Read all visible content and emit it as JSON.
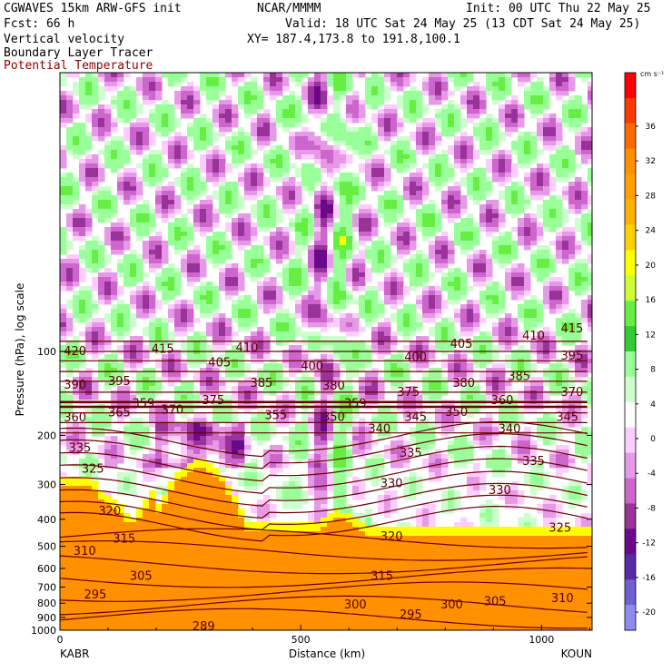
{
  "header": {
    "model": "CGWAVES 15km ARW-GFS init",
    "org": "NCAR/MMMM",
    "init": "Init: 00 UTC Thu 22 May 25",
    "fcst": "Fcst:   66 h",
    "valid": "Valid: 18 UTC Sat 24 May 25 (13 CDT Sat 24 May 25)",
    "field1": "Vertical velocity",
    "xy": "XY= 187.4,173.8 to 191.8,100.1",
    "field2": "Boundary Layer Tracer",
    "field3": "Potential Temperature",
    "field3_color": "#8b0000"
  },
  "chart_data": {
    "type": "heatmap",
    "xlabel": "Distance (km)",
    "ylabel": "Pressure (hPa), log scale",
    "xlim": [
      0,
      1105
    ],
    "ylim": [
      1000,
      10
    ],
    "x_ticks": [
      0,
      500,
      1000
    ],
    "y_ticks": [
      100,
      200,
      300,
      400,
      500,
      600,
      700,
      800,
      900,
      1000
    ],
    "start_label": "KABR",
    "end_label": "KOUN",
    "colorbar": {
      "unit": "cm s⁻¹",
      "levels": [
        36,
        32,
        28,
        24,
        20,
        16,
        12,
        8,
        4,
        0,
        -4,
        -8,
        -12,
        -16,
        -20
      ],
      "colors": [
        "#ff0000",
        "#ff3a00",
        "#ff6a00",
        "#ff9000",
        "#ff9f00",
        "#ffb000",
        "#ffd000",
        "#ffff00",
        "#ccff33",
        "#66ee44",
        "#33cc33",
        "#99ff99",
        "#ccffcc",
        "#ffffff",
        "#ffccff",
        "#e699e6",
        "#cc66cc",
        "#993399",
        "#6a0a8a",
        "#5a2aa8",
        "#6f5fd0",
        "#8c8cf0"
      ]
    },
    "theta_labels": [
      {
        "v": "420",
        "x": 8,
        "p": 100
      },
      {
        "v": "415",
        "x": 190,
        "p": 98
      },
      {
        "v": "410",
        "x": 365,
        "p": 97
      },
      {
        "v": "405",
        "x": 810,
        "p": 94
      },
      {
        "v": "410",
        "x": 960,
        "p": 88
      },
      {
        "v": "415",
        "x": 1040,
        "p": 83
      },
      {
        "v": "405",
        "x": 308,
        "p": 110
      },
      {
        "v": "400",
        "x": 500,
        "p": 113
      },
      {
        "v": "400",
        "x": 715,
        "p": 105
      },
      {
        "v": "395",
        "x": 1040,
        "p": 104
      },
      {
        "v": "390",
        "x": 8,
        "p": 132
      },
      {
        "v": "395",
        "x": 100,
        "p": 128
      },
      {
        "v": "385",
        "x": 395,
        "p": 130
      },
      {
        "v": "380",
        "x": 545,
        "p": 133
      },
      {
        "v": "380",
        "x": 815,
        "p": 130
      },
      {
        "v": "385",
        "x": 930,
        "p": 123
      },
      {
        "v": "375",
        "x": 700,
        "p": 140
      },
      {
        "v": "370",
        "x": 1040,
        "p": 140
      },
      {
        "v": "359",
        "x": 150,
        "p": 154
      },
      {
        "v": "375",
        "x": 295,
        "p": 150
      },
      {
        "v": "370",
        "x": 210,
        "p": 162
      },
      {
        "v": "365",
        "x": 100,
        "p": 166
      },
      {
        "v": "360",
        "x": 8,
        "p": 173
      },
      {
        "v": "355",
        "x": 425,
        "p": 170
      },
      {
        "v": "350",
        "x": 545,
        "p": 172
      },
      {
        "v": "345",
        "x": 715,
        "p": 172
      },
      {
        "v": "350",
        "x": 800,
        "p": 165
      },
      {
        "v": "345",
        "x": 1030,
        "p": 172
      },
      {
        "v": "359",
        "x": 590,
        "p": 154
      },
      {
        "v": "360",
        "x": 895,
        "p": 150
      },
      {
        "v": "340",
        "x": 640,
        "p": 190
      },
      {
        "v": "340",
        "x": 910,
        "p": 190
      },
      {
        "v": "335",
        "x": 18,
        "p": 222
      },
      {
        "v": "335",
        "x": 705,
        "p": 232
      },
      {
        "v": "335",
        "x": 960,
        "p": 248
      },
      {
        "v": "325",
        "x": 45,
        "p": 264
      },
      {
        "v": "330",
        "x": 665,
        "p": 298
      },
      {
        "v": "330",
        "x": 890,
        "p": 315
      },
      {
        "v": "320",
        "x": 80,
        "p": 375
      },
      {
        "v": "315",
        "x": 110,
        "p": 470
      },
      {
        "v": "310",
        "x": 28,
        "p": 520
      },
      {
        "v": "320",
        "x": 665,
        "p": 462
      },
      {
        "v": "325",
        "x": 1015,
        "p": 430
      },
      {
        "v": "305",
        "x": 145,
        "p": 640
      },
      {
        "v": "315",
        "x": 645,
        "p": 640
      },
      {
        "v": "295",
        "x": 50,
        "p": 745
      },
      {
        "v": "300",
        "x": 590,
        "p": 810
      },
      {
        "v": "300",
        "x": 790,
        "p": 810
      },
      {
        "v": "305",
        "x": 880,
        "p": 790
      },
      {
        "v": "310",
        "x": 1020,
        "p": 770
      },
      {
        "v": "295",
        "x": 705,
        "p": 880
      },
      {
        "v": "289",
        "x": 275,
        "p": 970
      }
    ]
  }
}
